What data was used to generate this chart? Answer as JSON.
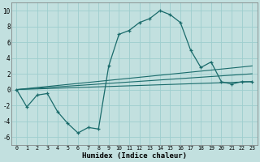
{
  "xlabel": "Humidex (Indice chaleur)",
  "xlim": [
    -0.5,
    23.5
  ],
  "ylim": [
    -7,
    11
  ],
  "yticks": [
    -6,
    -4,
    -2,
    0,
    2,
    4,
    6,
    8,
    10
  ],
  "xticks": [
    0,
    1,
    2,
    3,
    4,
    5,
    6,
    7,
    8,
    9,
    10,
    11,
    12,
    13,
    14,
    15,
    16,
    17,
    18,
    19,
    20,
    21,
    22,
    23
  ],
  "bg_color": "#c2e0df",
  "grid_color": "#9ecece",
  "line_color": "#1a6b6b",
  "main_line": [
    0.0,
    -2.2,
    -0.7,
    -0.5,
    -2.8,
    -4.3,
    -5.5,
    -4.8,
    -5.0,
    3.0,
    7.0,
    7.5,
    8.5,
    9.0,
    10.0,
    9.5,
    8.5,
    5.0,
    2.8,
    3.5,
    1.0,
    0.7,
    1.0,
    1.0
  ],
  "line2": [
    0.0,
    0.13,
    0.26,
    0.39,
    0.52,
    0.65,
    0.78,
    0.91,
    1.04,
    1.17,
    1.3,
    1.43,
    1.56,
    1.69,
    1.82,
    1.95,
    2.08,
    2.21,
    2.34,
    2.47,
    2.6,
    2.73,
    2.86,
    3.0
  ],
  "line3": [
    0.0,
    0.087,
    0.174,
    0.261,
    0.348,
    0.435,
    0.522,
    0.609,
    0.696,
    0.783,
    0.87,
    0.957,
    1.044,
    1.131,
    1.218,
    1.305,
    1.392,
    1.479,
    1.566,
    1.653,
    1.74,
    1.827,
    1.914,
    2.0
  ],
  "line4": [
    0.0,
    0.043,
    0.087,
    0.13,
    0.174,
    0.217,
    0.261,
    0.304,
    0.348,
    0.391,
    0.435,
    0.478,
    0.522,
    0.565,
    0.609,
    0.652,
    0.696,
    0.739,
    0.783,
    0.826,
    0.87,
    0.913,
    0.957,
    1.0
  ]
}
